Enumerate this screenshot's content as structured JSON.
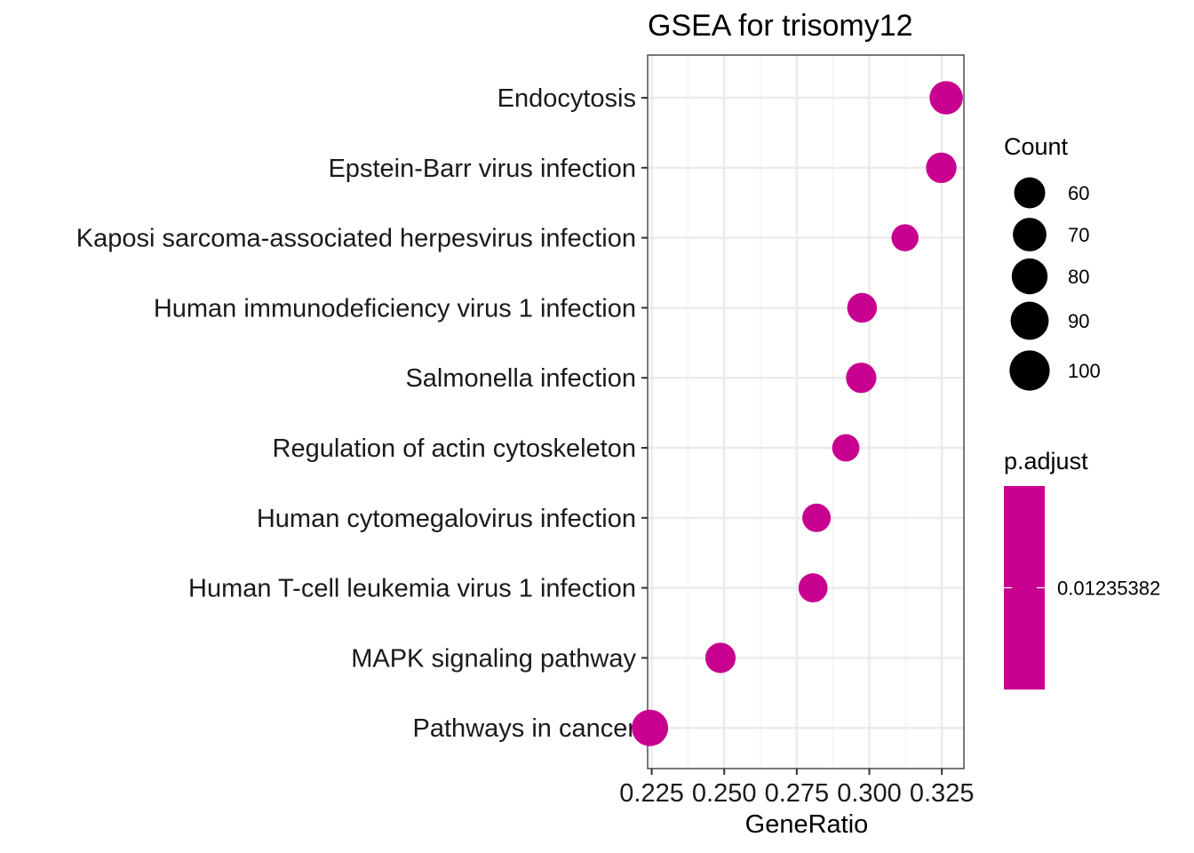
{
  "chart_data": {
    "type": "scatter",
    "title": "GSEA for trisomy12",
    "xlabel": "GeneRatio",
    "ylabel": "",
    "xlim": [
      0.2236,
      0.3326
    ],
    "xticks": [
      0.225,
      0.25,
      0.275,
      0.3,
      0.325
    ],
    "xtick_labels": [
      "0.225",
      "0.250",
      "0.275",
      "0.300",
      "0.325"
    ],
    "grid": true,
    "legend_position": "right",
    "color": "#C8008F",
    "categories": [
      "Endocytosis",
      "Epstein-Barr virus infection",
      "Kaposi sarcoma-associated herpesvirus infection",
      "Human immunodeficiency virus 1 infection",
      "Salmonella infection",
      "Regulation of actin cytoskeleton",
      "Human cytomegalovirus infection",
      "Human T-cell leukemia virus 1 infection",
      "MAPK signaling pathway",
      "Pathways in cancer"
    ],
    "points": [
      {
        "term": "Endocytosis",
        "gene_ratio": 0.3265,
        "count": 88
      },
      {
        "term": "Epstein-Barr virus infection",
        "gene_ratio": 0.3248,
        "count": 74
      },
      {
        "term": "Kaposi sarcoma-associated herpesvirus infection",
        "gene_ratio": 0.3123,
        "count": 58
      },
      {
        "term": "Human immunodeficiency virus 1 infection",
        "gene_ratio": 0.2975,
        "count": 70
      },
      {
        "term": "Salmonella infection",
        "gene_ratio": 0.2972,
        "count": 73
      },
      {
        "term": "Regulation of actin cytoskeleton",
        "gene_ratio": 0.2919,
        "count": 59
      },
      {
        "term": "Human cytomegalovirus infection",
        "gene_ratio": 0.2818,
        "count": 64
      },
      {
        "term": "Human T-cell leukemia virus 1 infection",
        "gene_ratio": 0.2806,
        "count": 67
      },
      {
        "term": "MAPK signaling pathway",
        "gene_ratio": 0.2487,
        "count": 73
      },
      {
        "term": "Pathways in cancer",
        "gene_ratio": 0.2244,
        "count": 105
      }
    ],
    "size_legend": {
      "title": "Count",
      "values": [
        60,
        70,
        80,
        90,
        100
      ],
      "labels": [
        "60",
        "70",
        "80",
        "90",
        "100"
      ],
      "color": "#000000"
    },
    "color_legend": {
      "title": "p.adjust",
      "value_label": "0.01235382",
      "color": "#C8008F"
    }
  }
}
